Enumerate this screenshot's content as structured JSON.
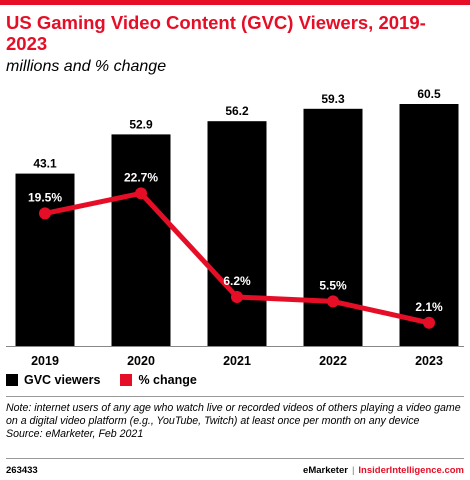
{
  "header": {
    "title": "US Gaming Video Content (GVC) Viewers, 2019-2023",
    "subtitle": "millions and % change"
  },
  "colors": {
    "bar": "#000000",
    "line": "#e60e27",
    "accent": "#e60e27"
  },
  "chart_data": {
    "type": "bar",
    "categories": [
      "2019",
      "2020",
      "2021",
      "2022",
      "2023"
    ],
    "series": [
      {
        "name": "GVC viewers",
        "type": "bar",
        "values": [
          43.1,
          52.9,
          56.2,
          59.3,
          60.5
        ],
        "labels": [
          "43.1",
          "52.9",
          "56.2",
          "59.3",
          "60.5"
        ]
      },
      {
        "name": "% change",
        "type": "line",
        "values": [
          19.5,
          22.7,
          6.2,
          5.5,
          2.1
        ],
        "labels": [
          "19.5%",
          "22.7%",
          "6.2%",
          "5.5%",
          "2.1%"
        ]
      }
    ],
    "ylim": [
      0,
      62
    ],
    "line_ylim": [
      0,
      35
    ],
    "legend": "bottom-left",
    "grid": false
  },
  "legend": {
    "bar_label": "GVC viewers",
    "line_label": "% change"
  },
  "note": {
    "text": "Note: internet users of any age who watch live or recorded videos of others playing a video game on a digital video platform (e.g., YouTube, Twitch) at least once per month on any device",
    "source": "Source: eMarketer, Feb 2021"
  },
  "footer": {
    "id": "263433",
    "brand": "eMarketer",
    "site": "InsiderIntelligence.com"
  }
}
